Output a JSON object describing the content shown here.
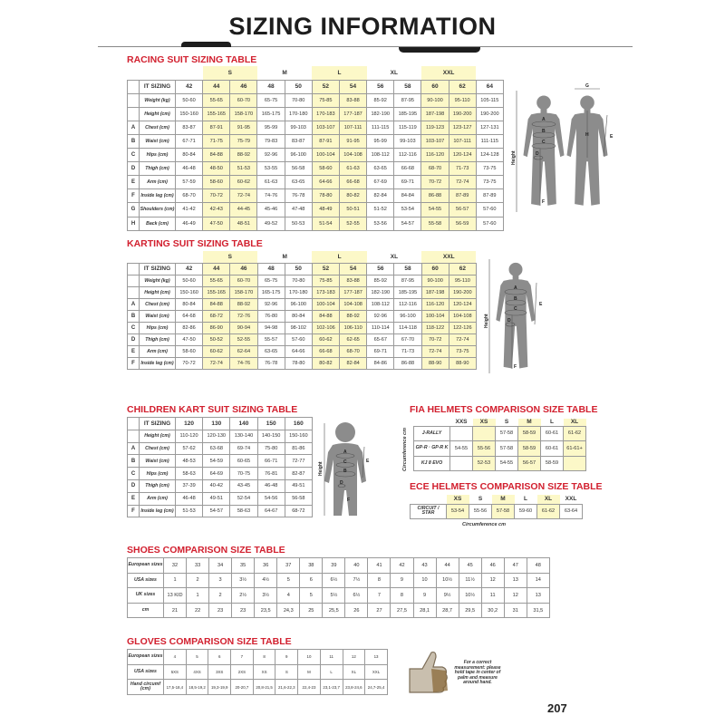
{
  "page_title": "SIZING INFORMATION",
  "page_number": "207",
  "colors": {
    "title_red": "#d2202f",
    "highlight_yellow": "#fcf8c8",
    "figure_gray": "#8c8c8c"
  },
  "figure": {
    "height": "Height",
    "A": "A",
    "B": "B",
    "C": "C",
    "D": "D",
    "E": "E",
    "F": "F",
    "G": "G",
    "H": "H"
  },
  "racing": {
    "title": "RACING SUIT SIZING TABLE",
    "groups": [
      {
        "label": "",
        "span": 1
      },
      {
        "label": "S",
        "span": 2,
        "highlight": true
      },
      {
        "label": "M",
        "span": 2
      },
      {
        "label": "L",
        "span": 2,
        "highlight": true
      },
      {
        "label": "XL",
        "span": 2
      },
      {
        "label": "XXL",
        "span": 2,
        "highlight": true
      },
      {
        "label": "",
        "span": 1
      }
    ],
    "header_label": "IT SIZING",
    "columns": [
      "42",
      "44",
      "46",
      "48",
      "50",
      "52",
      "54",
      "56",
      "58",
      "60",
      "62",
      "64"
    ],
    "rows": [
      {
        "letter": "",
        "label": "Weight (kg)",
        "values": [
          "50-60",
          "55-65",
          "60-70",
          "65-75",
          "70-80",
          "75-85",
          "83-88",
          "85-92",
          "87-95",
          "90-100",
          "95-110",
          "105-115"
        ]
      },
      {
        "letter": "",
        "label": "Height (cm)",
        "values": [
          "150-160",
          "155-165",
          "158-170",
          "165-175",
          "170-180",
          "170-183",
          "177-187",
          "182-190",
          "185-195",
          "187-198",
          "190-200",
          "190-200"
        ]
      },
      {
        "letter": "A",
        "label": "Chest (cm)",
        "values": [
          "83-87",
          "87-91",
          "91-95",
          "95-99",
          "99-103",
          "103-107",
          "107-111",
          "111-115",
          "115-119",
          "119-123",
          "123-127",
          "127-131"
        ]
      },
      {
        "letter": "B",
        "label": "Waist (cm)",
        "values": [
          "67-71",
          "71-75",
          "75-79",
          "79-83",
          "83-87",
          "87-91",
          "91-95",
          "95-99",
          "99-103",
          "103-107",
          "107-111",
          "111-115"
        ]
      },
      {
        "letter": "C",
        "label": "Hips (cm)",
        "values": [
          "80-84",
          "84-88",
          "88-92",
          "92-96",
          "96-100",
          "100-104",
          "104-108",
          "108-112",
          "112-116",
          "116-120",
          "120-124",
          "124-128"
        ]
      },
      {
        "letter": "D",
        "label": "Thigh (cm)",
        "values": [
          "46-48",
          "48-50",
          "51-53",
          "53-55",
          "56-58",
          "58-60",
          "61-63",
          "63-65",
          "66-68",
          "68-70",
          "71-73",
          "73-75"
        ]
      },
      {
        "letter": "E",
        "label": "Arm (cm)",
        "values": [
          "57-59",
          "58-60",
          "60-62",
          "61-63",
          "63-65",
          "64-66",
          "66-68",
          "67-69",
          "69-71",
          "70-72",
          "72-74",
          "73-75"
        ]
      },
      {
        "letter": "F",
        "label": "Inside leg (cm)",
        "values": [
          "68-70",
          "70-72",
          "72-74",
          "74-76",
          "76-78",
          "78-80",
          "80-82",
          "82-84",
          "84-84",
          "86-88",
          "87-89",
          "87-89"
        ]
      },
      {
        "letter": "G",
        "label": "Shoulders (cm)",
        "values": [
          "41-42",
          "42-43",
          "44-45",
          "45-46",
          "47-48",
          "48-49",
          "50-51",
          "51-52",
          "53-54",
          "54-55",
          "56-57",
          "57-60"
        ]
      },
      {
        "letter": "H",
        "label": "Back (cm)",
        "values": [
          "46-49",
          "47-50",
          "48-51",
          "49-52",
          "50-53",
          "51-54",
          "52-55",
          "53-56",
          "54-57",
          "55-58",
          "56-59",
          "57-60"
        ]
      }
    ]
  },
  "karting": {
    "title": "KARTING SUIT SIZING TABLE",
    "groups": [
      {
        "label": "",
        "span": 1
      },
      {
        "label": "S",
        "span": 2,
        "highlight": true
      },
      {
        "label": "M",
        "span": 2
      },
      {
        "label": "L",
        "span": 2,
        "highlight": true
      },
      {
        "label": "XL",
        "span": 2
      },
      {
        "label": "XXL",
        "span": 2,
        "highlight": true
      }
    ],
    "header_label": "IT SIZING",
    "columns": [
      "42",
      "44",
      "46",
      "48",
      "50",
      "52",
      "54",
      "56",
      "58",
      "60",
      "62"
    ],
    "rows": [
      {
        "letter": "",
        "label": "Weight (kg)",
        "values": [
          "50-60",
          "55-65",
          "60-70",
          "65-75",
          "70-80",
          "75-85",
          "83-88",
          "85-92",
          "87-95",
          "90-100",
          "95-110"
        ]
      },
      {
        "letter": "",
        "label": "Height (cm)",
        "values": [
          "150-160",
          "155-165",
          "158-170",
          "165-175",
          "170-180",
          "173-183",
          "177-187",
          "182-190",
          "185-195",
          "187-198",
          "190-200"
        ]
      },
      {
        "letter": "A",
        "label": "Chest (cm)",
        "values": [
          "80-84",
          "84-88",
          "88-92",
          "92-96",
          "96-100",
          "100-104",
          "104-108",
          "108-112",
          "112-116",
          "116-120",
          "120-124"
        ]
      },
      {
        "letter": "B",
        "label": "Waist (cm)",
        "values": [
          "64-68",
          "68-72",
          "72-76",
          "76-80",
          "80-84",
          "84-88",
          "88-92",
          "92-96",
          "96-100",
          "100-104",
          "104-108"
        ]
      },
      {
        "letter": "C",
        "label": "Hips (cm)",
        "values": [
          "82-86",
          "86-90",
          "90-94",
          "94-98",
          "98-102",
          "102-106",
          "106-110",
          "110-114",
          "114-118",
          "118-122",
          "122-126"
        ]
      },
      {
        "letter": "D",
        "label": "Thigh (cm)",
        "values": [
          "47-50",
          "50-52",
          "52-55",
          "55-57",
          "57-60",
          "60-62",
          "62-65",
          "65-67",
          "67-70",
          "70-72",
          "72-74"
        ]
      },
      {
        "letter": "E",
        "label": "Arm (cm)",
        "values": [
          "58-60",
          "60-62",
          "62-64",
          "63-65",
          "64-66",
          "66-68",
          "68-70",
          "69-71",
          "71-73",
          "72-74",
          "73-75"
        ]
      },
      {
        "letter": "F",
        "label": "Inside leg (cm)",
        "values": [
          "70-72",
          "72-74",
          "74-76",
          "76-78",
          "78-80",
          "80-82",
          "82-84",
          "84-86",
          "86-88",
          "88-90",
          "88-90"
        ]
      }
    ]
  },
  "children": {
    "title": "CHILDREN KART SUIT SIZING TABLE",
    "header_label": "IT SIZING",
    "columns": [
      "120",
      "130",
      "140",
      "150",
      "160"
    ],
    "rows": [
      {
        "letter": "",
        "label": "Height (cm)",
        "values": [
          "110-120",
          "120-130",
          "130-140",
          "140-150",
          "150-160"
        ]
      },
      {
        "letter": "A",
        "label": "Chest (cm)",
        "values": [
          "57-62",
          "63-68",
          "69-74",
          "75-80",
          "81-86"
        ]
      },
      {
        "letter": "B",
        "label": "Waist (cm)",
        "values": [
          "48-53",
          "54-59",
          "60-65",
          "66-71",
          "72-77"
        ]
      },
      {
        "letter": "C",
        "label": "Hips (cm)",
        "values": [
          "58-63",
          "64-69",
          "70-75",
          "76-81",
          "82-87"
        ]
      },
      {
        "letter": "D",
        "label": "Thigh (cm)",
        "values": [
          "37-39",
          "40-42",
          "43-45",
          "46-48",
          "49-51"
        ]
      },
      {
        "letter": "E",
        "label": "Arm (cm)",
        "values": [
          "46-48",
          "49-51",
          "52-54",
          "54-56",
          "56-58"
        ]
      },
      {
        "letter": "F",
        "label": "Inside leg (cm)",
        "values": [
          "51-53",
          "54-57",
          "58-63",
          "64-67",
          "68-72"
        ]
      }
    ]
  },
  "fia": {
    "title": "FIA HELMETS COMPARISON SIZE TABLE",
    "axis_label": "Circumference cm",
    "columns": [
      "XXS",
      "XS",
      "S",
      "M",
      "L",
      "XL"
    ],
    "highlighted_sizes": [
      "XS",
      "M",
      "XL"
    ],
    "rows": [
      {
        "label": "J-RALLY",
        "values": [
          "",
          "",
          "57-58",
          "58-59",
          "60-61",
          "61-62"
        ]
      },
      {
        "label": "GP-R · GP-R K",
        "values": [
          "54-55",
          "55-56",
          "57-58",
          "58-59",
          "60-61",
          "61-61+"
        ]
      },
      {
        "label": "KJ 8 EVO",
        "values": [
          "",
          "52-53",
          "54-55",
          "56-57",
          "58-59",
          ""
        ]
      }
    ]
  },
  "ece": {
    "title": "ECE HELMETS COMPARISON SIZE TABLE",
    "caption": "Circumference cm",
    "columns": [
      "XS",
      "S",
      "M",
      "L",
      "XL",
      "XXL"
    ],
    "highlighted_sizes": [
      "XS",
      "M",
      "XL"
    ],
    "rows": [
      {
        "label": "CIRCUIT / STAR",
        "values": [
          "53-54",
          "55-56",
          "57-58",
          "59-60",
          "61-62",
          "63-64"
        ]
      }
    ]
  },
  "shoes": {
    "title": "SHOES COMPARISON SIZE TABLE",
    "rows": [
      {
        "label": "European sizes",
        "values": [
          "32",
          "33",
          "34",
          "35",
          "36",
          "37",
          "38",
          "39",
          "40",
          "41",
          "42",
          "43",
          "44",
          "45",
          "46",
          "47",
          "48"
        ]
      },
      {
        "label": "USA sizes",
        "values": [
          "1",
          "2",
          "3",
          "3½",
          "4½",
          "5",
          "6",
          "6½",
          "7½",
          "8",
          "9",
          "10",
          "10½",
          "11½",
          "12",
          "13",
          "14"
        ]
      },
      {
        "label": "UK sizes",
        "values": [
          "13 KID",
          "1",
          "2",
          "2½",
          "3½",
          "4",
          "5",
          "5½",
          "6½",
          "7",
          "8",
          "9",
          "9½",
          "10½",
          "11",
          "12",
          "13"
        ]
      },
      {
        "label": "cm",
        "values": [
          "21",
          "22",
          "23",
          "23",
          "23,5",
          "24,3",
          "25",
          "25,5",
          "26",
          "27",
          "27,5",
          "28,1",
          "28,7",
          "29,5",
          "30,2",
          "31",
          "31,5"
        ]
      }
    ]
  },
  "gloves": {
    "title": "GLOVES COMPARISON SIZE TABLE",
    "rows": [
      {
        "label": "European sizes",
        "values": [
          "4",
          "5",
          "6",
          "7",
          "8",
          "9",
          "10",
          "11",
          "12",
          "13"
        ]
      },
      {
        "label": "USA sizes",
        "values": [
          "5XS",
          "4XS",
          "3XS",
          "2XS",
          "XS",
          "S",
          "M",
          "L",
          "XL",
          "XXL"
        ]
      },
      {
        "label": "Hand circumf (cm)",
        "values": [
          "17,5-18,4",
          "18,5-19,2",
          "19,3-19,9",
          "20-20,7",
          "20,8-21,5",
          "21,6-22,3",
          "22,4-23",
          "23,1-23,7",
          "23,8-24,6",
          "24,7-25,4"
        ]
      }
    ],
    "note": "For a correct measurement: please hold tape in center of palm and measure around hand."
  }
}
